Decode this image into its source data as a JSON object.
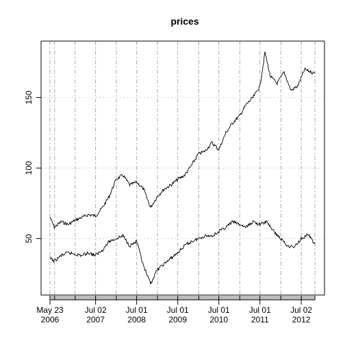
{
  "chart_data": {
    "type": "line",
    "title": "prices",
    "xlabel": "",
    "ylabel": "",
    "x_range": [
      "2006-05-23",
      "2012-10-31"
    ],
    "ylim": [
      10,
      190
    ],
    "y_ticks": [
      50,
      100,
      150
    ],
    "x_ticks": [
      {
        "date": "2006-05-23",
        "line1": "May 23",
        "line2": "2006"
      },
      {
        "date": "2007-07-02",
        "line1": "Jul 02",
        "line2": "2007"
      },
      {
        "date": "2008-07-01",
        "line1": "Jul 01",
        "line2": "2008"
      },
      {
        "date": "2009-07-01",
        "line1": "Jul 01",
        "line2": "2009"
      },
      {
        "date": "2010-07-01",
        "line1": "Jul 01",
        "line2": "2010"
      },
      {
        "date": "2011-07-01",
        "line1": "Jul 01",
        "line2": "2011"
      },
      {
        "date": "2012-07-02",
        "line1": "Jul 02",
        "line2": "2012"
      }
    ],
    "grid_dates": [
      "2006-05-23",
      "2006-07-03",
      "2007-01-02",
      "2007-07-02",
      "2008-01-02",
      "2008-07-01",
      "2009-01-02",
      "2009-07-01",
      "2010-01-04",
      "2010-07-01",
      "2011-01-03",
      "2011-07-01",
      "2012-01-03",
      "2012-07-02",
      "2012-10-31"
    ],
    "grid": true,
    "series": [
      {
        "x": [
          "2006-05-23",
          "2006-07-01",
          "2006-09-01",
          "2006-11-01",
          "2007-01-01",
          "2007-03-01",
          "2007-05-01",
          "2007-07-01",
          "2007-09-01",
          "2007-11-01",
          "2008-01-01",
          "2008-03-01",
          "2008-05-01",
          "2008-07-01",
          "2008-09-01",
          "2008-11-01",
          "2009-01-01",
          "2009-03-01",
          "2009-05-01",
          "2009-07-01",
          "2009-09-01",
          "2009-11-01",
          "2010-01-01",
          "2010-03-01",
          "2010-05-01",
          "2010-07-01",
          "2010-09-01",
          "2010-11-01",
          "2011-01-01",
          "2011-03-01",
          "2011-05-01",
          "2011-07-01",
          "2011-08-15",
          "2011-10-01",
          "2011-12-01",
          "2012-02-01",
          "2012-04-01",
          "2012-06-01",
          "2012-08-01",
          "2012-10-31"
        ],
        "values": [
          65,
          58,
          62,
          60,
          63,
          65,
          67,
          66,
          72,
          80,
          92,
          95,
          88,
          90,
          85,
          72,
          80,
          85,
          88,
          92,
          95,
          102,
          110,
          112,
          118,
          113,
          125,
          132,
          137,
          145,
          150,
          158,
          182,
          165,
          160,
          168,
          155,
          158,
          170,
          167
        ]
      },
      {
        "x": [
          "2006-05-23",
          "2006-07-01",
          "2006-09-01",
          "2006-11-01",
          "2007-01-01",
          "2007-03-01",
          "2007-05-01",
          "2007-07-01",
          "2007-09-01",
          "2007-11-01",
          "2008-01-01",
          "2008-03-01",
          "2008-05-01",
          "2008-07-01",
          "2008-09-01",
          "2008-11-01",
          "2009-01-01",
          "2009-03-01",
          "2009-05-01",
          "2009-07-01",
          "2009-09-01",
          "2009-11-01",
          "2010-01-01",
          "2010-03-01",
          "2010-05-01",
          "2010-07-01",
          "2010-09-01",
          "2010-11-01",
          "2011-01-01",
          "2011-03-01",
          "2011-05-01",
          "2011-07-01",
          "2011-09-01",
          "2011-11-01",
          "2012-01-01",
          "2012-03-01",
          "2012-05-01",
          "2012-07-01",
          "2012-09-01",
          "2012-10-31"
        ],
        "values": [
          36,
          34,
          38,
          40,
          39,
          38,
          40,
          38,
          42,
          48,
          50,
          52,
          45,
          48,
          30,
          18,
          28,
          32,
          36,
          40,
          45,
          48,
          50,
          52,
          52,
          55,
          58,
          62,
          60,
          58,
          62,
          60,
          62,
          55,
          50,
          45,
          44,
          50,
          53,
          46
        ]
      }
    ]
  }
}
